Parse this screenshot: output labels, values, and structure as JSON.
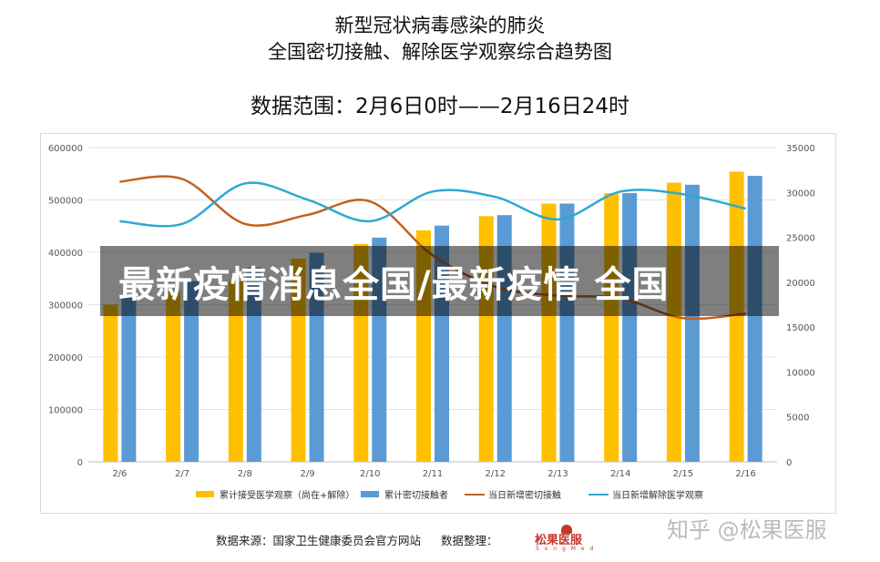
{
  "header": {
    "title_line1": "新型冠状病毒感染的肺炎",
    "title_line2": "全国密切接触、解除医学观察综合趋势图",
    "data_range": "数据范围：2月6日0时——2月16日24时"
  },
  "overlay_text": "最新疫情消息全国/最新疫情 全国",
  "footer": {
    "source": "数据来源：国家卫生健康委员会官方网站",
    "organizer": "数据整理：",
    "logo_text": "松果医服",
    "logo_sub": "S o n g M e d"
  },
  "watermark": "知乎 @松果医服",
  "colors": {
    "yellow": "#FFC000",
    "blue": "#5B9BD5",
    "brown": "#C0621F",
    "cyan": "#2EA9D2",
    "grid": "#e3e3e3"
  },
  "chart_data": {
    "type": "bar",
    "categories": [
      "2/6",
      "2/7",
      "2/8",
      "2/9",
      "2/10",
      "2/11",
      "2/12",
      "2/13",
      "2/14",
      "2/15",
      "2/16"
    ],
    "left_axis": {
      "ylim": [
        0,
        600000
      ],
      "ticks": [
        "0",
        "100000",
        "200000",
        "300000",
        "400000",
        "500000",
        "600000"
      ]
    },
    "right_axis": {
      "ylim": [
        0,
        35000
      ],
      "ticks": [
        "0",
        "5000",
        "10000",
        "15000",
        "20000",
        "25000",
        "30000",
        "35000"
      ]
    },
    "series": [
      {
        "name": "累计接受医学观察（尚在+解除）",
        "kind": "bar",
        "axis": "left",
        "color": "#FFC000",
        "values": [
          300000,
          326000,
          345000,
          388000,
          416000,
          442000,
          469000,
          493000,
          513000,
          533000,
          554000
        ]
      },
      {
        "name": "累计密切接触者",
        "kind": "bar",
        "axis": "left",
        "color": "#5B9BD5",
        "values": [
          314000,
          345000,
          371000,
          399000,
          428000,
          451000,
          471000,
          493000,
          513000,
          529000,
          546000
        ]
      },
      {
        "name": "当日新增密切接触",
        "kind": "line",
        "axis": "right",
        "color": "#C0621F",
        "values": [
          31200,
          31500,
          26500,
          27500,
          29000,
          23000,
          19500,
          18500,
          18200,
          16000,
          16500
        ]
      },
      {
        "name": "当日新增解除医学观察",
        "kind": "line",
        "axis": "right",
        "color": "#2EA9D2",
        "values": [
          26800,
          26500,
          31000,
          29200,
          26800,
          30100,
          29500,
          27000,
          30100,
          29800,
          28200
        ]
      }
    ]
  }
}
